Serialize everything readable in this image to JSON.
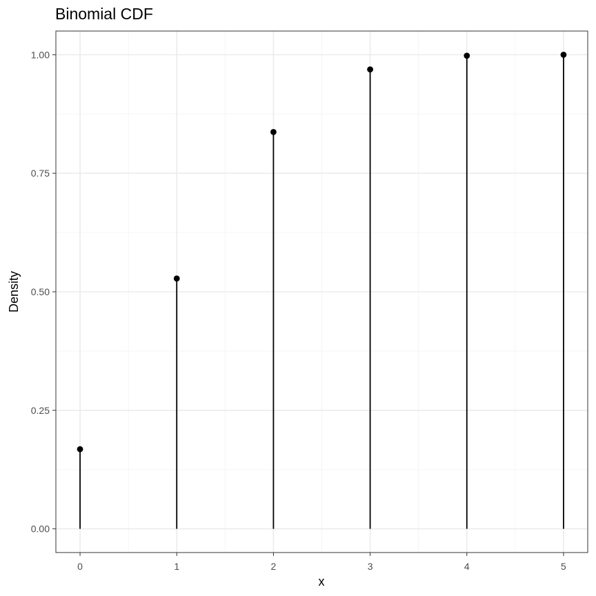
{
  "chart_data": {
    "type": "scatter",
    "title": "Binomial CDF",
    "xlabel": "x",
    "ylabel": "Density",
    "xlim": [
      -0.25,
      5.25
    ],
    "ylim": [
      -0.05,
      1.05
    ],
    "x_ticks": [
      0,
      1,
      2,
      3,
      4,
      5
    ],
    "x_tick_labels": [
      "0",
      "1",
      "2",
      "3",
      "4",
      "5"
    ],
    "y_ticks": [
      0,
      0.25,
      0.5,
      0.75,
      1.0
    ],
    "y_tick_labels": [
      "0.00",
      "0.25",
      "0.50",
      "0.75",
      "1.00"
    ],
    "grid": true,
    "style": "lollipop",
    "series": [
      {
        "x": [
          0,
          1,
          2,
          3,
          4,
          5
        ],
        "y": [
          0.168,
          0.528,
          0.837,
          0.969,
          0.998,
          1.0
        ]
      }
    ],
    "colors": {
      "points": "#000000",
      "stems": "#000000",
      "grid_major": "#ebebeb",
      "grid_minor": "#f5f5f5",
      "panel_border": "#333333"
    }
  }
}
